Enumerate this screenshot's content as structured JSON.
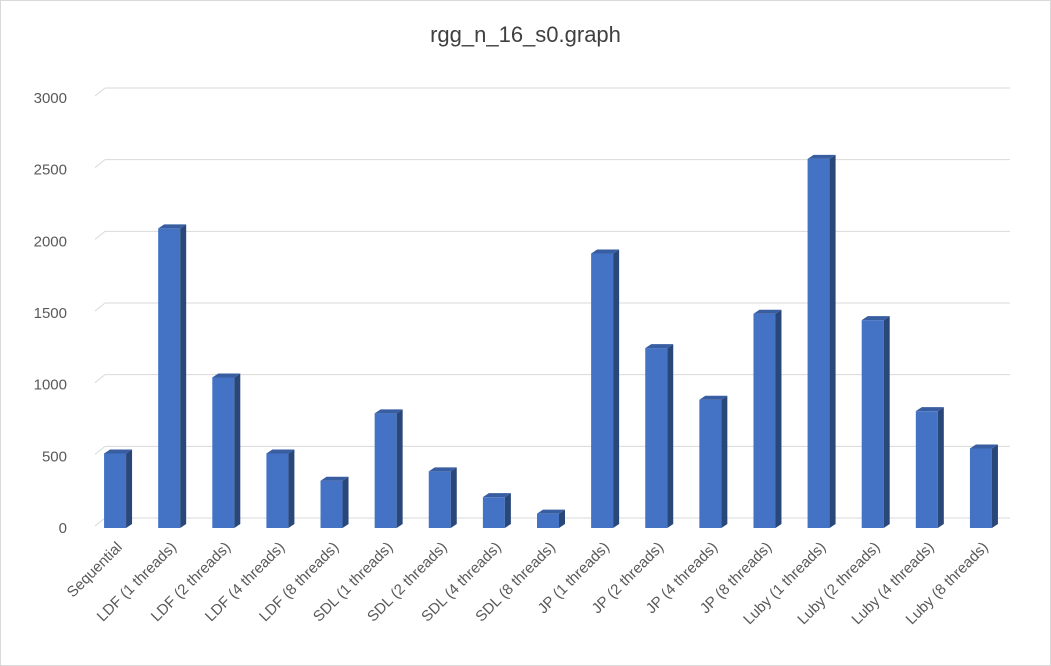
{
  "chart_data": {
    "type": "bar",
    "title": "rgg_n_16_s0.graph",
    "xlabel": "",
    "ylabel": "",
    "ylim": [
      0,
      3000
    ],
    "yticks": [
      0,
      500,
      1000,
      1500,
      2000,
      2500,
      3000
    ],
    "grid": true,
    "style": "3d-column",
    "bar_color": "#4472c4",
    "categories": [
      "Sequential",
      "LDF (1 threads)",
      "LDF (2 threads)",
      "LDF (4 threads)",
      "LDF (8 threads)",
      "SDL (1 threads)",
      "SDL (2 threads)",
      "SDL (4 threads)",
      "SDL (8 threads)",
      "JP (1 threads)",
      "JP (2 threads)",
      "JP (4 threads)",
      "JP (8 threads)",
      "Luby (1 threads)",
      "Luby (2 threads)",
      "Luby (4 threads)",
      "Luby (8 threads)"
    ],
    "values": [
      520,
      2090,
      1050,
      520,
      330,
      800,
      395,
      215,
      100,
      1915,
      1255,
      895,
      1495,
      2575,
      1450,
      815,
      555
    ]
  }
}
